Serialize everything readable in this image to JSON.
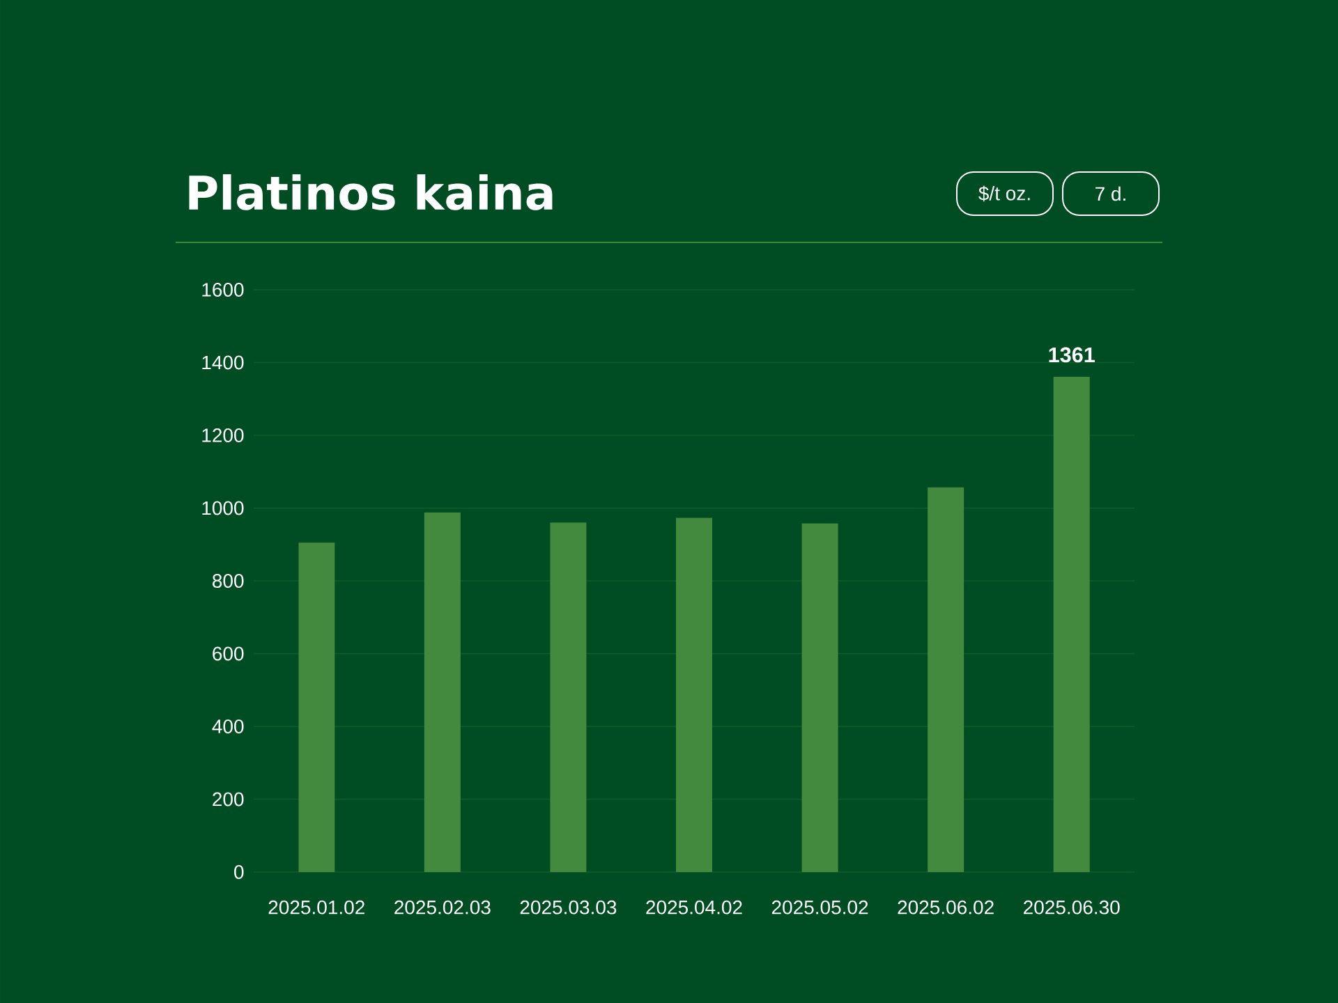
{
  "chart_data": {
    "type": "bar",
    "title": "Platinos kaina",
    "annotations": [
      "$/t oz.",
      "7 d."
    ],
    "categories": [
      "2025.01.02",
      "2025.02.03",
      "2025.03.03",
      "2025.04.02",
      "2025.05.02",
      "2025.06.02",
      "2025.06.30"
    ],
    "values": [
      905,
      988,
      960,
      973,
      958,
      1057,
      1361
    ],
    "value_labels": [
      null,
      null,
      null,
      null,
      null,
      null,
      "1361"
    ],
    "color": "#448a3e",
    "ylim": [
      0,
      1600
    ],
    "yticks": [
      0,
      200,
      400,
      600,
      800,
      1000,
      1200,
      1400,
      1600
    ],
    "grid": "y"
  }
}
